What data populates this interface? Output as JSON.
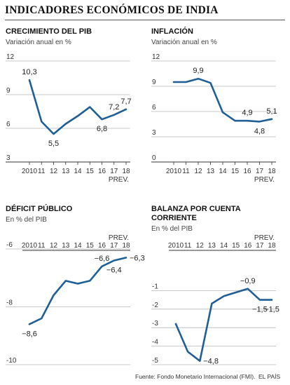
{
  "title": "INDICADORES ECONÓMICOS DE INDIA",
  "source": "Fuente: Fondo Monetario Internacional (FMI).",
  "brand": "EL PAÍS",
  "colors": {
    "line": "#1f5f96",
    "grid": "#b8b8b8",
    "text": "#222222"
  },
  "chart_data": [
    {
      "type": "line",
      "title": "CRECIMIENTO DEL PIB",
      "subtitle": "Variación anual en %",
      "x": [
        "2010",
        "11",
        "12",
        "13",
        "14",
        "15",
        "16",
        "17",
        "18"
      ],
      "x_extra": "PREV.",
      "values": [
        10.3,
        6.6,
        5.5,
        6.4,
        7.1,
        7.9,
        6.8,
        7.2,
        7.7
      ],
      "ylim": [
        3,
        12
      ],
      "yticks": [
        3,
        6,
        9,
        12
      ],
      "ytick_labels": [
        "3",
        "6",
        "9",
        "12"
      ],
      "data_labels": [
        {
          "i": 0,
          "text": "10,3",
          "pos": "above"
        },
        {
          "i": 2,
          "text": "5,5",
          "pos": "below"
        },
        {
          "i": 6,
          "text": "6,8",
          "pos": "below"
        },
        {
          "i": 7,
          "text": "7,2",
          "pos": "above"
        },
        {
          "i": 8,
          "text": "7,7",
          "pos": "above"
        }
      ],
      "x_axis": "bottom"
    },
    {
      "type": "line",
      "title": "INFLACIÓN",
      "subtitle": "Variación anual en %",
      "x": [
        "2010",
        "11",
        "12",
        "13",
        "14",
        "15",
        "16",
        "17",
        "18"
      ],
      "x_extra": "PREV.",
      "values": [
        9.5,
        9.5,
        9.9,
        9.4,
        5.9,
        4.9,
        4.9,
        4.8,
        5.1
      ],
      "ylim": [
        0,
        12
      ],
      "yticks": [
        0,
        3,
        6,
        9,
        12
      ],
      "ytick_labels": [
        "0",
        "3",
        "6",
        "9",
        "12"
      ],
      "data_labels": [
        {
          "i": 2,
          "text": "9,9",
          "pos": "above"
        },
        {
          "i": 6,
          "text": "4,9",
          "pos": "above"
        },
        {
          "i": 7,
          "text": "4,8",
          "pos": "below"
        },
        {
          "i": 8,
          "text": "5,1",
          "pos": "above"
        }
      ],
      "x_axis": "bottom"
    },
    {
      "type": "line",
      "title": "DÉFICIT PÚBLICO",
      "subtitle": "En % del PIB",
      "x": [
        "2010",
        "11",
        "12",
        "13",
        "14",
        "15",
        "16",
        "17",
        "18"
      ],
      "x_extra": "PREV.",
      "values": [
        -8.6,
        -8.4,
        -7.6,
        -7.1,
        -7.2,
        -7.1,
        -6.6,
        -6.4,
        -6.3
      ],
      "ylim": [
        -10,
        -6
      ],
      "yticks": [
        -10,
        -8,
        -6
      ],
      "ytick_labels": [
        "-10",
        "-8",
        "-6"
      ],
      "data_labels": [
        {
          "i": 0,
          "text": "−8,6",
          "pos": "below"
        },
        {
          "i": 6,
          "text": "−6,6",
          "pos": "above"
        },
        {
          "i": 7,
          "text": "−6,4",
          "pos": "below"
        },
        {
          "i": 8,
          "text": "−6,3",
          "pos": "right"
        }
      ],
      "x_axis": "top"
    },
    {
      "type": "line",
      "title": "BALANZA POR CUENTA CORRIENTE",
      "title_lines": [
        "BALANZA POR CUENTA",
        "CORRIENTE"
      ],
      "subtitle": "En % del PIB",
      "x": [
        "2010",
        "11",
        "12",
        "13",
        "14",
        "15",
        "16",
        "17",
        "18"
      ],
      "x_extra": "PREV.",
      "values": [
        -2.8,
        -4.3,
        -4.8,
        -1.7,
        -1.3,
        -1.1,
        -0.9,
        -1.5,
        -1.5
      ],
      "ylim": [
        -5,
        0
      ],
      "yticks": [
        -5,
        -4,
        -3,
        -2,
        -1
      ],
      "ytick_labels": [
        "-5",
        "-4",
        "-3",
        "-2",
        "-1"
      ],
      "data_labels": [
        {
          "i": 2,
          "text": "−4,8",
          "pos": "right"
        },
        {
          "i": 6,
          "text": "−0,9",
          "pos": "above"
        },
        {
          "i": 7,
          "text": "−1,5",
          "pos": "below"
        },
        {
          "i": 8,
          "text": "−1,5",
          "pos": "below"
        }
      ],
      "x_axis": "top"
    }
  ]
}
